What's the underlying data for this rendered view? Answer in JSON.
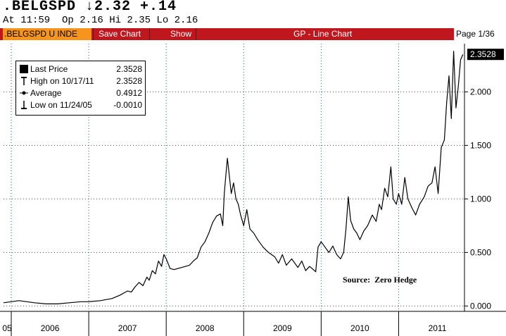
{
  "header": {
    "ticker_line": ".BELGSPD ↓2.32 +.14",
    "quote_line": "At 11:59  Op 2.16 Hi 2.35 Lo 2.16"
  },
  "toolbar": {
    "ticker_label": ".BELGSPD U INDE",
    "save_label": "Save Chart",
    "show_label": "Show",
    "title": "GP - Line Chart",
    "page_label": "Page 1/36"
  },
  "legend": {
    "items": [
      {
        "label": "Last Price",
        "value": "2.3528",
        "icon": "filled-square-icon"
      },
      {
        "label": "High on 10/17/11",
        "value": "2.3528",
        "icon": "high-marker-icon"
      },
      {
        "label": "Average",
        "value": "0.4912",
        "icon": "average-marker-icon"
      },
      {
        "label": "Low on 11/24/05",
        "value": "-0.0010",
        "icon": "low-marker-icon"
      }
    ]
  },
  "source_note": "Source:  Zero Hedge",
  "colors": {
    "toolbar_bg": "#c0171e",
    "ticker_box_bg": "#f7941d",
    "grid": "#1a56b4",
    "line": "#000000"
  },
  "chart_data": {
    "type": "line",
    "title": "",
    "xlabel": "",
    "ylabel": "",
    "x_tick_labels": [
      "05",
      "2006",
      "2007",
      "2008",
      "2009",
      "2010",
      "2011"
    ],
    "y_tick_labels": [
      "0.000",
      "0.500",
      "1.000",
      "1.500",
      "2.000"
    ],
    "ylim": [
      -0.05,
      2.45
    ],
    "xlim": [
      2005.9,
      2011.85
    ],
    "last_value_label": "2.3528",
    "grid": true,
    "legend_position": "top-left",
    "series": [
      {
        "name": "Last Price",
        "points": [
          [
            2005.9,
            0.03
          ],
          [
            2006.0,
            0.04
          ],
          [
            2006.1,
            0.05
          ],
          [
            2006.2,
            0.04
          ],
          [
            2006.3,
            0.03
          ],
          [
            2006.45,
            0.02
          ],
          [
            2006.6,
            0.02
          ],
          [
            2006.75,
            0.03
          ],
          [
            2006.9,
            0.04
          ],
          [
            2007.0,
            0.04
          ],
          [
            2007.15,
            0.05
          ],
          [
            2007.3,
            0.07
          ],
          [
            2007.4,
            0.1
          ],
          [
            2007.5,
            0.14
          ],
          [
            2007.55,
            0.13
          ],
          [
            2007.6,
            0.18
          ],
          [
            2007.65,
            0.22
          ],
          [
            2007.7,
            0.19
          ],
          [
            2007.75,
            0.27
          ],
          [
            2007.78,
            0.24
          ],
          [
            2007.82,
            0.33
          ],
          [
            2007.86,
            0.3
          ],
          [
            2007.9,
            0.42
          ],
          [
            2007.94,
            0.37
          ],
          [
            2007.97,
            0.48
          ],
          [
            2008.0,
            0.44
          ],
          [
            2008.05,
            0.35
          ],
          [
            2008.1,
            0.34
          ],
          [
            2008.2,
            0.36
          ],
          [
            2008.3,
            0.38
          ],
          [
            2008.35,
            0.42
          ],
          [
            2008.4,
            0.45
          ],
          [
            2008.45,
            0.55
          ],
          [
            2008.5,
            0.6
          ],
          [
            2008.55,
            0.68
          ],
          [
            2008.6,
            0.78
          ],
          [
            2008.65,
            0.84
          ],
          [
            2008.7,
            0.86
          ],
          [
            2008.73,
            0.75
          ],
          [
            2008.75,
            1.05
          ],
          [
            2008.77,
            1.22
          ],
          [
            2008.79,
            1.38
          ],
          [
            2008.81,
            1.25
          ],
          [
            2008.84,
            1.05
          ],
          [
            2008.87,
            1.15
          ],
          [
            2008.9,
            1.0
          ],
          [
            2008.93,
            0.95
          ],
          [
            2008.96,
            0.85
          ],
          [
            2009.0,
            0.75
          ],
          [
            2009.04,
            0.9
          ],
          [
            2009.08,
            0.72
          ],
          [
            2009.13,
            0.68
          ],
          [
            2009.18,
            0.62
          ],
          [
            2009.25,
            0.55
          ],
          [
            2009.32,
            0.5
          ],
          [
            2009.4,
            0.46
          ],
          [
            2009.45,
            0.4
          ],
          [
            2009.5,
            0.48
          ],
          [
            2009.55,
            0.38
          ],
          [
            2009.62,
            0.44
          ],
          [
            2009.7,
            0.36
          ],
          [
            2009.75,
            0.42
          ],
          [
            2009.8,
            0.33
          ],
          [
            2009.85,
            0.37
          ],
          [
            2009.9,
            0.34
          ],
          [
            2009.93,
            0.32
          ],
          [
            2009.96,
            0.55
          ],
          [
            2010.0,
            0.6
          ],
          [
            2010.05,
            0.55
          ],
          [
            2010.1,
            0.5
          ],
          [
            2010.15,
            0.56
          ],
          [
            2010.2,
            0.48
          ],
          [
            2010.25,
            0.44
          ],
          [
            2010.29,
            0.5
          ],
          [
            2010.32,
            0.72
          ],
          [
            2010.35,
            1.02
          ],
          [
            2010.38,
            0.8
          ],
          [
            2010.42,
            0.72
          ],
          [
            2010.46,
            0.68
          ],
          [
            2010.5,
            0.62
          ],
          [
            2010.55,
            0.7
          ],
          [
            2010.6,
            0.75
          ],
          [
            2010.66,
            0.85
          ],
          [
            2010.71,
            0.79
          ],
          [
            2010.75,
            0.95
          ],
          [
            2010.78,
            0.9
          ],
          [
            2010.82,
            1.1
          ],
          [
            2010.86,
            1.02
          ],
          [
            2010.9,
            1.3
          ],
          [
            2010.93,
            1.0
          ],
          [
            2010.97,
            0.95
          ],
          [
            2011.0,
            1.05
          ],
          [
            2011.04,
            0.95
          ],
          [
            2011.08,
            1.2
          ],
          [
            2011.12,
            1.0
          ],
          [
            2011.17,
            0.92
          ],
          [
            2011.22,
            0.85
          ],
          [
            2011.27,
            0.95
          ],
          [
            2011.33,
            1.02
          ],
          [
            2011.38,
            1.12
          ],
          [
            2011.43,
            1.15
          ],
          [
            2011.47,
            1.3
          ],
          [
            2011.51,
            1.05
          ],
          [
            2011.55,
            1.48
          ],
          [
            2011.59,
            1.55
          ],
          [
            2011.62,
            1.9
          ],
          [
            2011.65,
            2.15
          ],
          [
            2011.68,
            1.75
          ],
          [
            2011.71,
            2.38
          ],
          [
            2011.74,
            1.85
          ],
          [
            2011.77,
            2.05
          ],
          [
            2011.8,
            2.3
          ],
          [
            2011.83,
            2.35
          ]
        ]
      }
    ]
  }
}
